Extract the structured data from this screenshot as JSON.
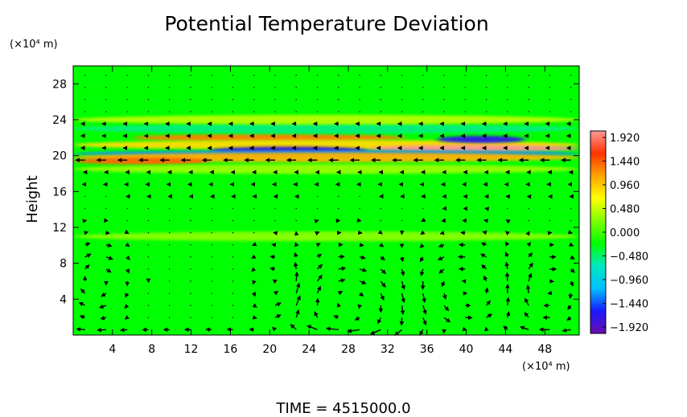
{
  "chart_data": {
    "type": "heatmap",
    "title": "Potential Temperature Deviation",
    "ylabel": "Height",
    "y_unit": "(×10⁴ m)",
    "x_unit": "(×10⁴ m)",
    "x_ticks": [
      "4",
      "8",
      "12",
      "16",
      "20",
      "24",
      "28",
      "32",
      "36",
      "40",
      "44",
      "48"
    ],
    "x_tick_values": [
      4,
      8,
      12,
      16,
      20,
      24,
      28,
      32,
      36,
      40,
      44,
      48
    ],
    "y_ticks": [
      "4",
      "8",
      "12",
      "16",
      "20",
      "24",
      "28"
    ],
    "y_tick_values": [
      4,
      8,
      12,
      16,
      20,
      24,
      28
    ],
    "xlim": [
      0,
      51.5
    ],
    "ylim": [
      0,
      30
    ],
    "colorbar": {
      "labels": [
        "1.920",
        "1.440",
        "0.960",
        "0.480",
        "0.000",
        "−0.480",
        "−0.960",
        "−1.440",
        "−1.920"
      ],
      "range": [
        -1.92,
        1.92
      ],
      "colors": [
        "#6a0dad",
        "#1a1aff",
        "#00bfff",
        "#00e8c0",
        "#00ff00",
        "#7fff00",
        "#ffff00",
        "#ffa500",
        "#ff3300",
        "#ff9999"
      ]
    },
    "background_value": 0.0,
    "bands": [
      {
        "y": 22.0,
        "x_range": [
          6,
          34
        ],
        "value": 1.2
      },
      {
        "y": 21.2,
        "x_range": [
          0,
          51.5
        ],
        "value": 0.8
      },
      {
        "y": 20.6,
        "x_range": [
          14,
          30
        ],
        "value": -1.7
      },
      {
        "y": 21.8,
        "x_range": [
          37,
          46
        ],
        "value": -1.6
      },
      {
        "y": 20.8,
        "x_range": [
          30,
          51.5
        ],
        "value": 1.9
      },
      {
        "y": 20.2,
        "x_range": [
          0,
          51.5
        ],
        "value": -1.2
      },
      {
        "y": 19.8,
        "x_range": [
          0,
          51.5
        ],
        "value": 1.0
      },
      {
        "y": 19.4,
        "x_range": [
          0,
          14
        ],
        "value": 1.3
      },
      {
        "y": 23.0,
        "x_range": [
          0,
          51.5
        ],
        "value": -0.5
      },
      {
        "y": 24.0,
        "x_range": [
          0,
          51.5
        ],
        "value": 0.4
      },
      {
        "y": 18.5,
        "x_range": [
          0,
          51.5
        ],
        "value": 0.3
      },
      {
        "y": 11.0,
        "x_range": [
          0,
          51.5
        ],
        "value": 0.25
      }
    ],
    "vortices": [
      {
        "cx": 28,
        "cy": 3.5,
        "rx": 6,
        "ry": 4.5,
        "dir": -1
      },
      {
        "cx": 39.5,
        "cy": 5,
        "rx": 5,
        "ry": 4.5,
        "dir": 1
      },
      {
        "cx": 21,
        "cy": 5,
        "rx": 2.5,
        "ry": 3.5,
        "dir": 1
      },
      {
        "cx": 2.5,
        "cy": 6,
        "rx": 2.5,
        "ry": 3.5,
        "dir": -1
      },
      {
        "cx": 48,
        "cy": 5,
        "rx": 3,
        "ry": 3.5,
        "dir": -1
      }
    ]
  },
  "footer": "TIME = 4515000.0"
}
